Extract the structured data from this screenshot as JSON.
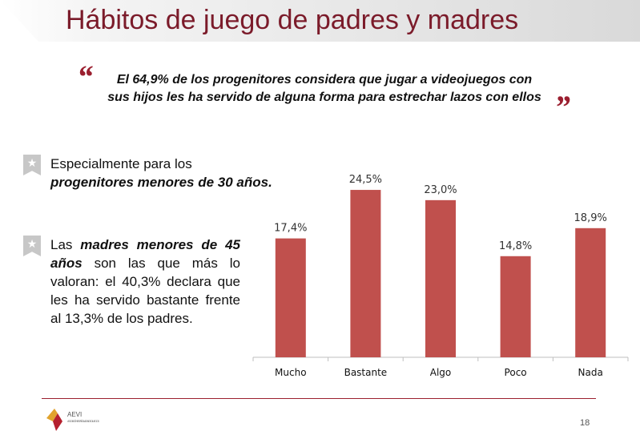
{
  "title": "Hábitos de juego de padres y madres",
  "quote": {
    "line1": "El 64,9% de los progenitores considera que jugar a videojuegos con",
    "line2": "sus hijos les ha servido de alguna forma para estrechar lazos con ellos",
    "open_mark": "“",
    "close_mark": "”"
  },
  "bullet_icon": "star-icon",
  "bullet1": {
    "text_a": "Especialmente para los",
    "text_b": "progenitores menores de 30 años."
  },
  "bullet2": {
    "text_a": "Las",
    "text_em": "madres menores de 45 años",
    "text_b": "son las que más lo valoran: el 40,3% declara que les ha servido bastante frente al 13,3% de los padres."
  },
  "chart_data": {
    "type": "bar",
    "categories": [
      "Mucho",
      "Bastante",
      "Algo",
      "Poco",
      "Nada"
    ],
    "values": [
      17.4,
      24.5,
      23.0,
      14.8,
      18.9
    ],
    "data_labels": [
      "17,4%",
      "24,5%",
      "23,0%",
      "14,8%",
      "18,9%"
    ],
    "ylim": [
      0,
      26.5
    ],
    "bar_color": "#c0504d",
    "grid": false
  },
  "footer": {
    "page_number": "18",
    "logo_text": "AEVI",
    "logo_subtext": "ASOCIACIÓN ESPAÑOLA DE VIDEOJUEGOS"
  },
  "colors": {
    "accent": "#7b1b2a",
    "quote": "#9b1f2f",
    "bullet": "#c7c7c7"
  }
}
